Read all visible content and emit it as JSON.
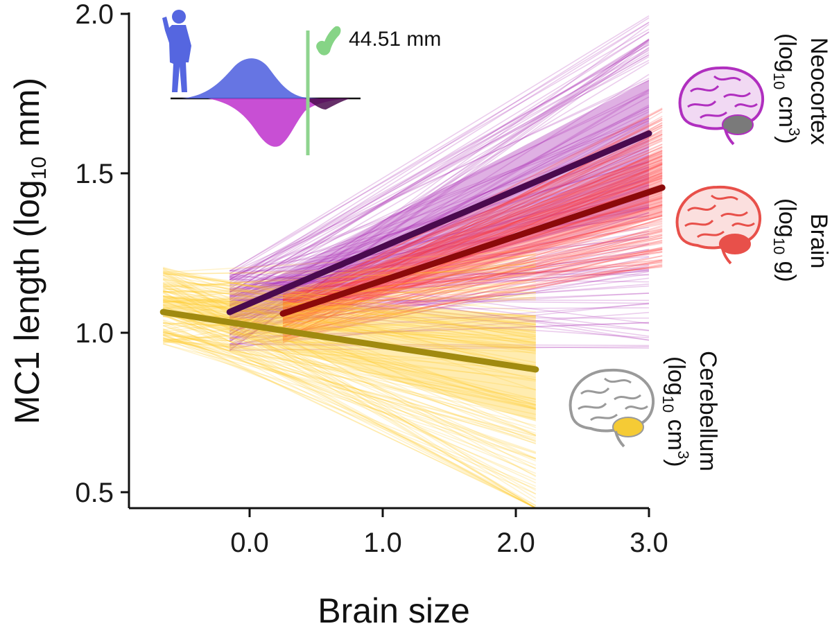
{
  "chart_data": {
    "type": "line",
    "xlabel": "Brain size",
    "ylabel": "MC1 length (log",
    "ylabel_sub": "10",
    "ylabel_tail": " mm)",
    "xlim": [
      -0.9,
      3.0
    ],
    "ylim": [
      0.45,
      2.0
    ],
    "x_ticks": [
      0.0,
      1.0,
      2.0,
      3.0
    ],
    "x_tick_labels": [
      "0.0",
      "1.0",
      "2.0",
      "3.0"
    ],
    "y_ticks": [
      0.5,
      1.0,
      1.5,
      2.0
    ],
    "y_tick_labels": [
      "0.5",
      "1.0",
      "1.5",
      "2.0"
    ],
    "grid": false,
    "series": [
      {
        "name": "Neocortex",
        "unit_prefix": "(log",
        "unit_sub": "10",
        "unit_tail": " cm",
        "unit_sup": "3",
        "unit_close": ")",
        "x": [
          -0.15,
          3.0
        ],
        "y": [
          1.065,
          1.625
        ],
        "color": "#4a0a4e",
        "band_color": "#a21caf",
        "band_low": [
          0.93,
          0.95
        ],
        "band_high": [
          1.21,
          2.0
        ]
      },
      {
        "name": "Brain",
        "unit_prefix": "(log",
        "unit_sub": "10",
        "unit_tail": " g)",
        "x": [
          0.25,
          3.1
        ],
        "y": [
          1.06,
          1.455
        ],
        "color": "#8b0a0a",
        "band_color": "#ff3b3b",
        "band_low": [
          0.96,
          1.2
        ],
        "band_high": [
          1.13,
          1.72
        ]
      },
      {
        "name": "Cerebellum",
        "unit_prefix": "(log",
        "unit_sub": "10",
        "unit_tail": " cm",
        "unit_sup": "3",
        "unit_close": ")",
        "x": [
          -0.65,
          2.15
        ],
        "y": [
          1.065,
          0.885
        ],
        "color": "#a08a10",
        "band_color": "#ffc81e",
        "band_low": [
          0.95,
          0.42
        ],
        "band_high": [
          1.22,
          1.26
        ]
      }
    ],
    "annotation": {
      "text": "44.51 mm"
    }
  },
  "colors": {
    "human_silhouette": "#5566e0",
    "reference_line": "#8fd48f",
    "fossil_bone": "#86d486",
    "neocortex_icon": "#b02fbf",
    "brain_icon": "#e8504a",
    "cerebellum_icon": "#f5cb35",
    "brain_outline_gray": "#9a9a9a"
  }
}
